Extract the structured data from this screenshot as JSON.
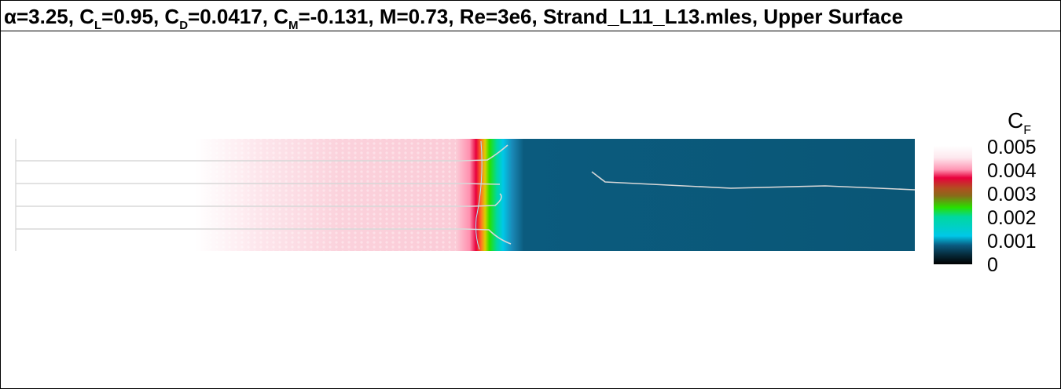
{
  "title": {
    "alpha_symbol": "α",
    "alpha_value": "=3.25, ",
    "cl_main": "C",
    "cl_sub": "L",
    "cl_value": "=0.95, ",
    "cd_main": "C",
    "cd_sub": "D",
    "cd_value": "=0.0417, ",
    "cm_main": "C",
    "cm_sub": "M",
    "cm_value": "=-0.131, M=0.73, Re=3e6, Strand_L11_L13.mles, Upper Surface"
  },
  "colorbar": {
    "title_main": "C",
    "title_sub": "F",
    "ticks": [
      "0.005",
      "0.004",
      "0.003",
      "0.002",
      "0.001",
      "0"
    ],
    "tick_values": [
      0.005,
      0.004,
      0.003,
      0.002,
      0.001,
      0
    ],
    "colors": {
      "top": "#fde8ee",
      "pink": "#ff96b4",
      "red": "#e8003c",
      "brown": "#8a6a1a",
      "green": "#28e000",
      "cyan": "#00c8e8",
      "blue": "#0a5a80",
      "black": "#000000"
    }
  },
  "field": {
    "colors": {
      "laminar": "#fbd2dc",
      "turbulent": "#0b5b7e",
      "contour": "#d8d8d8"
    }
  }
}
